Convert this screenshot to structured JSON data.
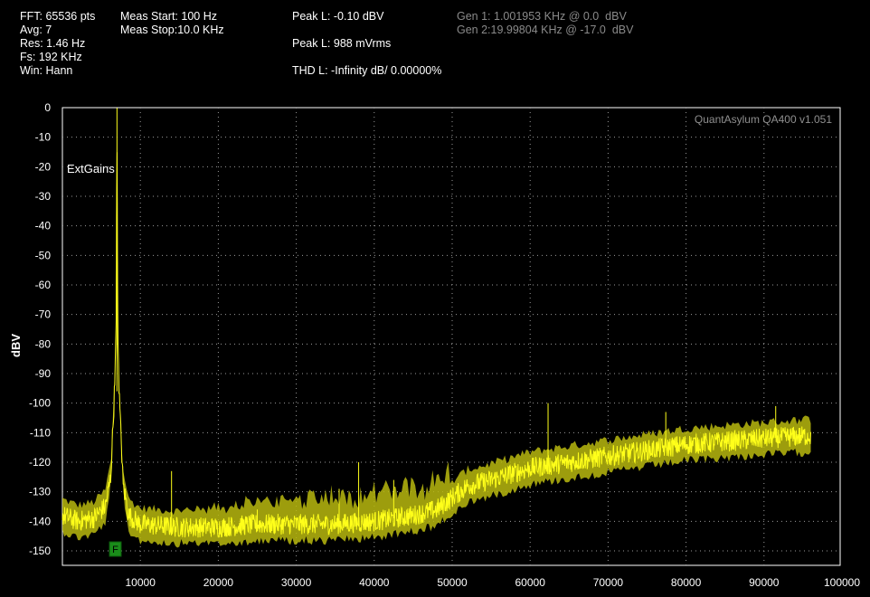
{
  "header": {
    "fft": "FFT: 65536 pts",
    "avg": "Avg: 7",
    "res": "Res: 1.46 Hz",
    "fs": "Fs: 192 KHz",
    "win": "Win: Hann",
    "meas_start": "Meas Start: 100 Hz",
    "meas_stop": "Meas Stop:10.0 KHz",
    "peak_dbv": "Peak L: -0.10 dBV",
    "peak_mv": "Peak L: 988 mVrms",
    "thd": "THD L: -Infinity dB/ 0.00000%",
    "gen1": "Gen 1: 1.001953 KHz @ 0.0  dBV",
    "gen2": "Gen 2:19.99804 KHz @ -17.0  dBV"
  },
  "chart_data": {
    "type": "line",
    "title": "",
    "xlabel": "",
    "ylabel": "dBV",
    "watermark": "QuantAsylum QA400 v1.051",
    "annotation": "ExtGains",
    "marker_label": "F",
    "xlim": [
      0,
      100000
    ],
    "ylim": [
      -155,
      0
    ],
    "x_ticks": [
      10000,
      20000,
      30000,
      40000,
      50000,
      60000,
      70000,
      80000,
      90000,
      100000
    ],
    "y_ticks": [
      0,
      -10,
      -20,
      -30,
      -40,
      -50,
      -60,
      -70,
      -80,
      -90,
      -100,
      -110,
      -120,
      -130,
      -140,
      -150
    ],
    "grid": true,
    "series": [
      {
        "color": "#ffff1a",
        "x": [
          0,
          2000,
          4000,
          5500,
          6200,
          6700,
          6900,
          7000,
          7100,
          7300,
          7800,
          8500,
          10000,
          15000,
          20000,
          25000,
          30000,
          35000,
          40000,
          45000,
          48000,
          50000,
          52000,
          55000,
          60000,
          65000,
          70000,
          75000,
          80000,
          85000,
          90000,
          96000
        ],
        "y": [
          -138,
          -140,
          -139,
          -135,
          -125,
          -95,
          -72,
          -0.1,
          -75,
          -98,
          -128,
          -138,
          -141,
          -142,
          -142,
          -141,
          -141,
          -141,
          -140,
          -138,
          -136,
          -132,
          -128,
          -126,
          -122,
          -120,
          -118,
          -116,
          -114,
          -113,
          -112,
          -111
        ]
      }
    ],
    "spurs": [
      {
        "x": 14000,
        "y": -123
      },
      {
        "x": 25000,
        "y": -136
      },
      {
        "x": 35500,
        "y": -129
      },
      {
        "x": 38000,
        "y": -120
      },
      {
        "x": 42500,
        "y": -126
      },
      {
        "x": 62300,
        "y": -100
      },
      {
        "x": 77400,
        "y": -103
      },
      {
        "x": 91500,
        "y": -101
      }
    ]
  }
}
